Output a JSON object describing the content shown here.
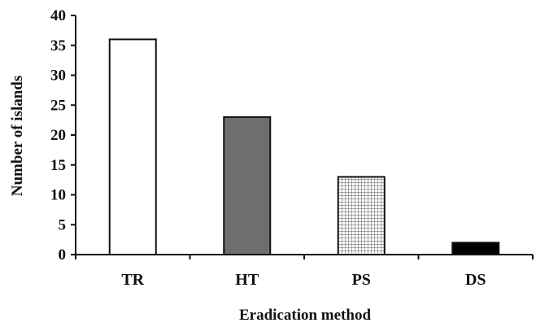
{
  "chart_data": {
    "type": "bar",
    "categories": [
      "TR",
      "HT",
      "PS",
      "DS"
    ],
    "values": [
      36,
      23,
      13,
      2
    ],
    "xlabel": "Eradication method",
    "ylabel": "Number of islands",
    "ylim": [
      0,
      40
    ],
    "yticks": [
      0,
      5,
      10,
      15,
      20,
      25,
      30,
      35,
      40
    ],
    "grid": false,
    "legend": "none",
    "bar_styles": [
      {
        "fill": "#ffffff",
        "pattern": "none"
      },
      {
        "fill": "#6e6e6e",
        "pattern": "none"
      },
      {
        "fill": "#ffffff",
        "pattern": "grid"
      },
      {
        "fill": "#000000",
        "pattern": "none"
      }
    ],
    "colors": {
      "axis": "#111111",
      "bar_stroke": "#111111"
    }
  }
}
